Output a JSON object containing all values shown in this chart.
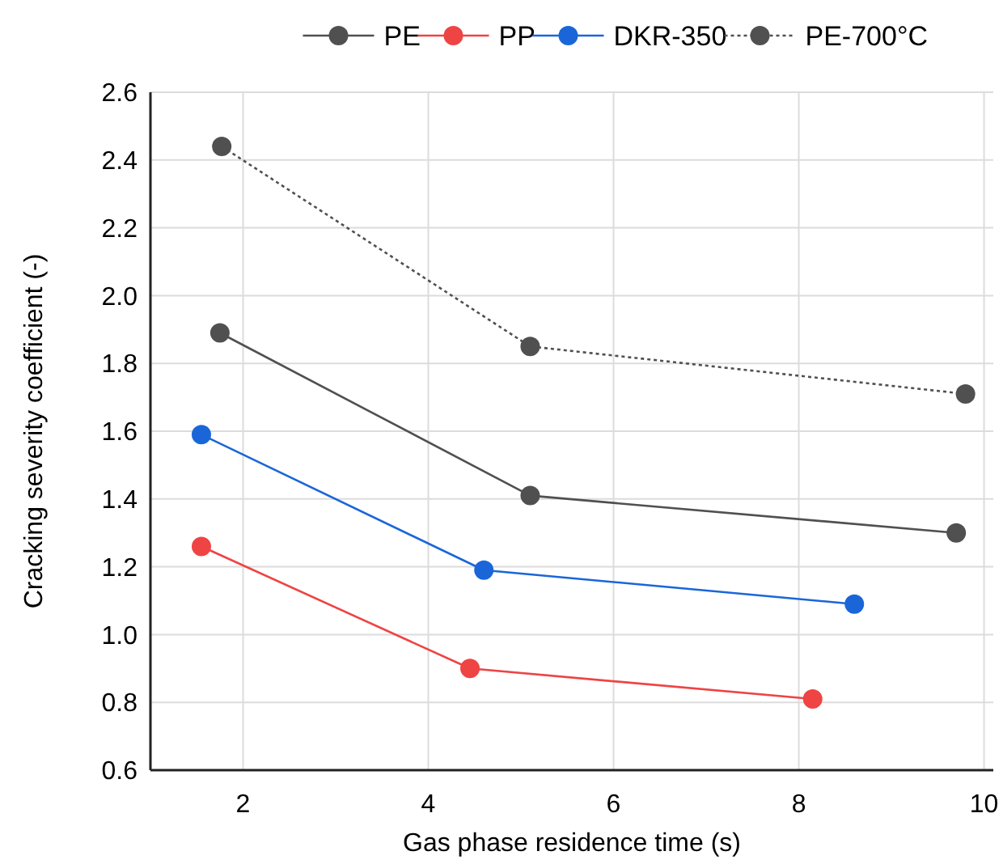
{
  "chart_data": {
    "type": "line",
    "xlabel": "Gas phase residence time (s)",
    "ylabel": "Cracking severity coefficient (-)",
    "xlim": [
      1,
      10.1
    ],
    "xticks": [
      2,
      4,
      6,
      8,
      10
    ],
    "ylim": [
      0.6,
      2.6
    ],
    "yticks": [
      {
        "value": 0.6,
        "label": "0.6"
      },
      {
        "value": 0.8,
        "label": "0.8"
      },
      {
        "value": 1,
        "label": "1.0"
      },
      {
        "value": 1.2,
        "label": "1.2"
      },
      {
        "value": 1.4,
        "label": "1.4"
      },
      {
        "value": 1.6,
        "label": "1.6"
      },
      {
        "value": 1.8,
        "label": "1.8"
      },
      {
        "value": 2,
        "label": "2.0"
      },
      {
        "value": 2.2,
        "label": "2.2"
      },
      {
        "value": 2.4,
        "label": "2.4"
      },
      {
        "value": 2.6,
        "label": "2.6"
      }
    ],
    "grid": true,
    "legend": "top",
    "marker": "circle",
    "line_style": "solid",
    "series": [
      {
        "name": "PE",
        "color": "#505050",
        "x": [
          1.75,
          5.1,
          9.7
        ],
        "values": [
          1.89,
          1.41,
          1.3
        ]
      },
      {
        "name": "PP",
        "color": "#ee4444",
        "x": [
          1.55,
          4.45,
          8.15
        ],
        "values": [
          1.26,
          0.9,
          0.81
        ]
      },
      {
        "name": "DKR-350",
        "color": "#1a66d9",
        "x": [
          1.55,
          4.6,
          8.6
        ],
        "values": [
          1.59,
          1.19,
          1.09
        ]
      },
      {
        "name": "PE-700°C",
        "color": "#505050",
        "line_style": "dotted",
        "x": [
          1.77,
          5.1,
          9.8
        ],
        "values": [
          2.44,
          1.85,
          1.71
        ]
      }
    ]
  }
}
